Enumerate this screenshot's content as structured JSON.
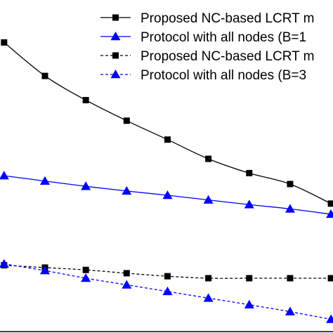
{
  "chart_data": {
    "type": "line",
    "title": "",
    "xlabel": "",
    "ylabel": "",
    "x": [
      1,
      2,
      3,
      4,
      5,
      6,
      7,
      8,
      9
    ],
    "xlim": [
      0.9,
      9.05
    ],
    "ylim": [
      0,
      100
    ],
    "grid": false,
    "legend_position": "top-right",
    "series": [
      {
        "name": "Proposed NC-based LCRT m",
        "values": [
          87.2,
          77.1,
          69.8,
          63.6,
          57.9,
          52.1,
          47.8,
          44.5,
          38.6
        ],
        "color": "#000000",
        "line": "solid",
        "marker": "square"
      },
      {
        "name": "Protocol with all nodes (B=1",
        "values": [
          47.0,
          45.4,
          43.8,
          42.4,
          41.1,
          39.7,
          38.3,
          37.0,
          35.4
        ],
        "color": "#0000ff",
        "line": "solid",
        "marker": "triangle"
      },
      {
        "name": "Proposed NC-based LCRT m",
        "values": [
          20.0,
          19.3,
          18.6,
          17.6,
          16.7,
          16.1,
          16.1,
          16.1,
          16.1
        ],
        "color": "#000000",
        "line": "dashed",
        "marker": "square"
      },
      {
        "name": "Protocol with all nodes (B=3",
        "values": [
          20.4,
          18.4,
          16.1,
          14.1,
          12.1,
          10.1,
          8.1,
          6.0,
          3.7
        ],
        "color": "#0000ff",
        "line": "dashed",
        "marker": "triangle"
      }
    ]
  }
}
